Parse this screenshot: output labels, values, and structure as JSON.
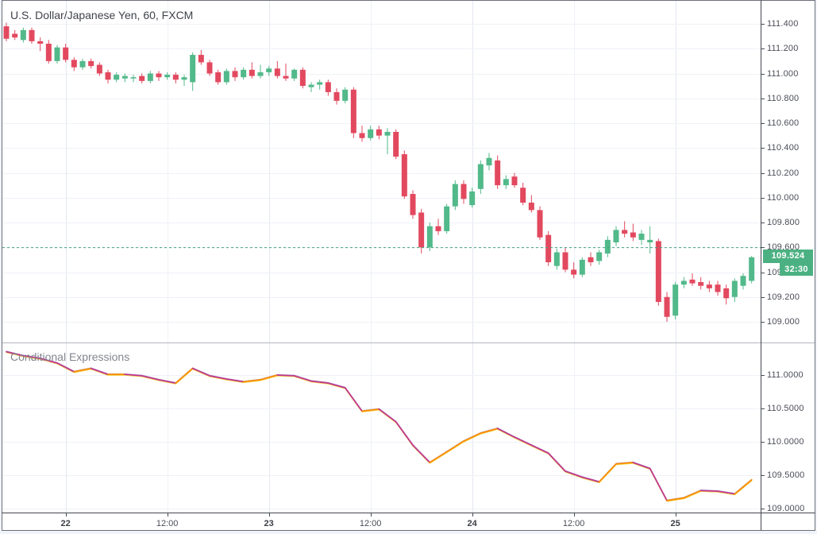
{
  "header": {
    "symbol_title": "U.S. Dollar/Japanese Yen, 60, FXCM"
  },
  "indicator": {
    "title": "Conditional Expressions"
  },
  "price_axis": {
    "tick_labels": [
      "111.400",
      "111.200",
      "111.000",
      "110.800",
      "110.600",
      "110.400",
      "110.200",
      "110.000",
      "109.800",
      "109.600",
      "109.400",
      "109.200",
      "109.000"
    ],
    "last_price_label": "109.524",
    "countdown_label": "32:30"
  },
  "indicator_axis": {
    "tick_labels": [
      "111.0000",
      "110.5000",
      "110.0000",
      "109.5000",
      "109.0000"
    ]
  },
  "time_axis": {
    "ticks": [
      {
        "index": 7,
        "label": "22",
        "major": true
      },
      {
        "index": 19,
        "label": "12:00",
        "major": false
      },
      {
        "index": 31,
        "label": "23",
        "major": true
      },
      {
        "index": 43,
        "label": "12:00",
        "major": false
      },
      {
        "index": 55,
        "label": "24",
        "major": true
      },
      {
        "index": 67,
        "label": "12:00",
        "major": false
      },
      {
        "index": 79,
        "label": "25",
        "major": true
      }
    ]
  },
  "colors": {
    "up": "#52b98a",
    "down": "#e2495f",
    "badge": "#4cb182",
    "price_line": "#44a57c",
    "line_rise": "#fb8c00",
    "line_fall": "#c0398c",
    "line_under_yellow": "#f3d237",
    "line_under_blue": "#8084d8",
    "grid": "#eef1f7",
    "grid_vertical": "#e4e8f1",
    "frame": "#6b6f79",
    "separator": "#42464f",
    "divider": "#b2b5be"
  },
  "chart_data": [
    {
      "type": "candlestick",
      "title": "U.S. Dollar/Japanese Yen, 60, FXCM",
      "interval_minutes": 60,
      "exchange": "FXCM",
      "ylim": [
        108.83,
        111.48
      ],
      "y_ticks": [
        111.4,
        111.2,
        111.0,
        110.8,
        110.6,
        110.4,
        110.2,
        110.0,
        109.8,
        109.6,
        109.4,
        109.2,
        109.0
      ],
      "last_price": 109.524,
      "price_line_level": 109.598,
      "ohlc": [
        [
          111.38,
          111.41,
          111.26,
          111.28
        ],
        [
          111.32,
          111.35,
          111.27,
          111.29
        ],
        [
          111.27,
          111.37,
          111.25,
          111.35
        ],
        [
          111.35,
          111.37,
          111.24,
          111.26
        ],
        [
          111.26,
          111.29,
          111.18,
          111.24
        ],
        [
          111.24,
          111.27,
          111.08,
          111.1
        ],
        [
          111.1,
          111.23,
          111.08,
          111.21
        ],
        [
          111.21,
          111.24,
          111.09,
          111.11
        ],
        [
          111.11,
          111.13,
          111.02,
          111.05
        ],
        [
          111.05,
          111.12,
          111.03,
          111.1
        ],
        [
          111.1,
          111.12,
          111.04,
          111.06
        ],
        [
          111.07,
          111.09,
          110.98,
          111.0
        ],
        [
          111.01,
          111.03,
          110.92,
          110.95
        ],
        [
          110.95,
          111.01,
          110.93,
          110.99
        ],
        [
          110.96,
          111.0,
          110.93,
          110.98
        ],
        [
          110.96,
          110.99,
          110.93,
          110.97
        ],
        [
          110.98,
          111.0,
          110.92,
          110.94
        ],
        [
          110.94,
          111.02,
          110.92,
          111.0
        ],
        [
          111.0,
          111.02,
          110.94,
          110.97
        ],
        [
          110.97,
          111.01,
          110.95,
          110.99
        ],
        [
          110.99,
          111.01,
          110.92,
          110.95
        ],
        [
          110.95,
          110.99,
          110.9,
          110.97
        ],
        [
          110.93,
          111.17,
          110.86,
          111.15
        ],
        [
          111.15,
          111.19,
          111.07,
          111.09
        ],
        [
          111.09,
          111.11,
          110.98,
          111.0
        ],
        [
          111.01,
          111.03,
          110.91,
          110.93
        ],
        [
          110.93,
          111.04,
          110.91,
          111.02
        ],
        [
          111.02,
          111.05,
          110.94,
          110.97
        ],
        [
          110.97,
          111.05,
          110.95,
          111.03
        ],
        [
          111.03,
          111.09,
          110.96,
          110.98
        ],
        [
          110.98,
          111.07,
          110.96,
          111.01
        ],
        [
          111.01,
          111.06,
          110.98,
          111.04
        ],
        [
          111.04,
          111.1,
          110.96,
          110.98
        ],
        [
          110.98,
          111.08,
          110.94,
          110.96
        ],
        [
          110.96,
          111.04,
          110.94,
          111.03
        ],
        [
          111.03,
          111.05,
          110.88,
          110.9
        ],
        [
          110.89,
          110.93,
          110.85,
          110.91
        ],
        [
          110.91,
          110.95,
          110.87,
          110.93
        ],
        [
          110.93,
          110.95,
          110.82,
          110.85
        ],
        [
          110.85,
          110.88,
          110.75,
          110.78
        ],
        [
          110.78,
          110.89,
          110.76,
          110.87
        ],
        [
          110.87,
          110.89,
          110.48,
          110.52
        ],
        [
          110.52,
          110.58,
          110.45,
          110.48
        ],
        [
          110.48,
          110.58,
          110.46,
          110.55
        ],
        [
          110.55,
          110.58,
          110.47,
          110.5
        ],
        [
          110.5,
          110.56,
          110.35,
          110.53
        ],
        [
          110.53,
          110.55,
          110.31,
          110.33
        ],
        [
          110.35,
          110.38,
          109.99,
          110.01
        ],
        [
          110.03,
          110.06,
          109.83,
          109.86
        ],
        [
          109.88,
          109.91,
          109.55,
          109.6
        ],
        [
          109.6,
          109.8,
          109.57,
          109.77
        ],
        [
          109.77,
          109.83,
          109.7,
          109.73
        ],
        [
          109.73,
          109.95,
          109.71,
          109.93
        ],
        [
          109.93,
          110.14,
          109.9,
          110.11
        ],
        [
          110.11,
          110.14,
          109.95,
          109.99
        ],
        [
          109.94,
          110.08,
          109.92,
          110.05
        ],
        [
          110.07,
          110.3,
          110.03,
          110.27
        ],
        [
          110.26,
          110.36,
          110.22,
          110.32
        ],
        [
          110.3,
          110.34,
          110.07,
          110.1
        ],
        [
          110.1,
          110.18,
          110.07,
          110.15
        ],
        [
          110.17,
          110.2,
          110.08,
          110.1
        ],
        [
          110.08,
          110.12,
          109.94,
          109.96
        ],
        [
          109.96,
          110.02,
          109.88,
          109.9
        ],
        [
          109.9,
          109.93,
          109.66,
          109.68
        ],
        [
          109.7,
          109.73,
          109.45,
          109.48
        ],
        [
          109.45,
          109.59,
          109.42,
          109.56
        ],
        [
          109.56,
          109.6,
          109.4,
          109.42
        ],
        [
          109.42,
          109.48,
          109.35,
          109.38
        ],
        [
          109.38,
          109.52,
          109.36,
          109.5
        ],
        [
          109.52,
          109.56,
          109.45,
          109.48
        ],
        [
          109.49,
          109.58,
          109.46,
          109.56
        ],
        [
          109.55,
          109.69,
          109.52,
          109.66
        ],
        [
          109.64,
          109.77,
          109.61,
          109.74
        ],
        [
          109.74,
          109.81,
          109.68,
          109.71
        ],
        [
          109.72,
          109.79,
          109.65,
          109.68
        ],
        [
          109.66,
          109.74,
          109.62,
          109.71
        ],
        [
          109.64,
          109.77,
          109.55,
          109.66
        ],
        [
          109.65,
          109.67,
          109.13,
          109.16
        ],
        [
          109.2,
          109.24,
          109.0,
          109.04
        ],
        [
          109.05,
          109.32,
          109.02,
          109.3
        ],
        [
          109.3,
          109.36,
          109.27,
          109.33
        ],
        [
          109.34,
          109.39,
          109.29,
          109.31
        ],
        [
          109.32,
          109.36,
          109.26,
          109.29
        ],
        [
          109.3,
          109.33,
          109.24,
          109.27
        ],
        [
          109.3,
          109.33,
          109.21,
          109.24
        ],
        [
          109.27,
          109.3,
          109.14,
          109.19
        ],
        [
          109.2,
          109.35,
          109.16,
          109.33
        ],
        [
          109.29,
          109.39,
          109.26,
          109.37
        ],
        [
          109.33,
          109.53,
          109.31,
          109.52
        ]
      ]
    },
    {
      "type": "line",
      "title": "Conditional Expressions",
      "candle_index_step": 2,
      "ylim": [
        108.97,
        111.48
      ],
      "y_ticks": [
        111.0,
        110.5,
        110.0,
        109.5,
        109.0
      ],
      "values": [
        111.35,
        111.29,
        111.25,
        111.18,
        111.05,
        111.1,
        111.01,
        111.01,
        110.99,
        110.93,
        110.88,
        111.1,
        110.99,
        110.94,
        110.9,
        110.93,
        111.0,
        110.99,
        110.91,
        110.88,
        110.81,
        110.46,
        110.49,
        110.3,
        109.95,
        109.69,
        109.85,
        110.01,
        110.13,
        110.2,
        110.07,
        109.95,
        109.83,
        109.56,
        109.47,
        109.4,
        109.67,
        109.69,
        109.6,
        109.12,
        109.16,
        109.27,
        109.26,
        109.22,
        109.43
      ]
    }
  ]
}
